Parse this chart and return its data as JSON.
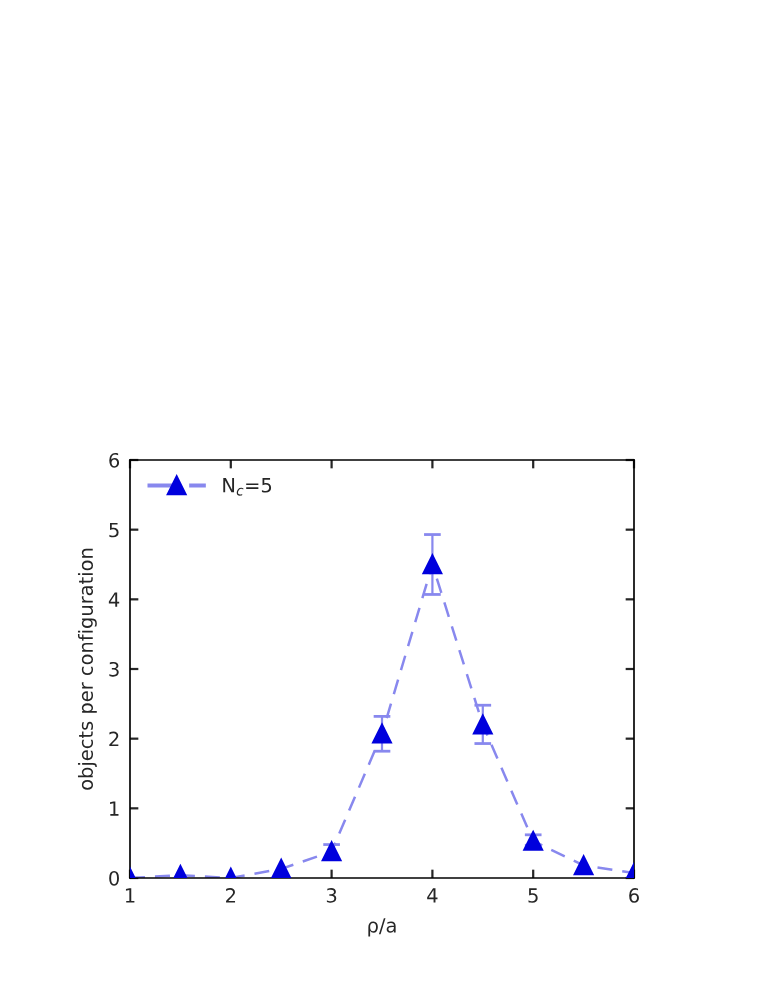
{
  "chart_data": {
    "type": "line",
    "xlabel": "ρ/a",
    "ylabel": "objects per configuration",
    "x": [
      1,
      1.5,
      2,
      2.5,
      3,
      3.5,
      4,
      4.5,
      5,
      5.5,
      6
    ],
    "series": [
      {
        "name": "N$_{c}$=5",
        "color": "#0000dd",
        "values": [
          0,
          0.04,
          0,
          0.13,
          0.38,
          2.07,
          4.5,
          2.2,
          0.53,
          0.18,
          0.07
        ],
        "errors": [
          null,
          null,
          null,
          null,
          [
            0.28,
            0.48
          ],
          [
            1.82,
            2.32
          ],
          [
            4.07,
            4.93
          ],
          [
            1.93,
            2.48
          ],
          [
            0.47,
            0.62
          ],
          null,
          null
        ]
      }
    ],
    "xlim": [
      1,
      6
    ],
    "xticks": [
      1,
      2,
      3,
      4,
      5,
      6
    ],
    "ylim": [
      0,
      6
    ],
    "yticks": [
      0,
      1,
      2,
      3,
      4,
      5,
      6
    ],
    "grid": false,
    "legend": "top left",
    "marker": "triangle",
    "line_style": "dashed"
  }
}
